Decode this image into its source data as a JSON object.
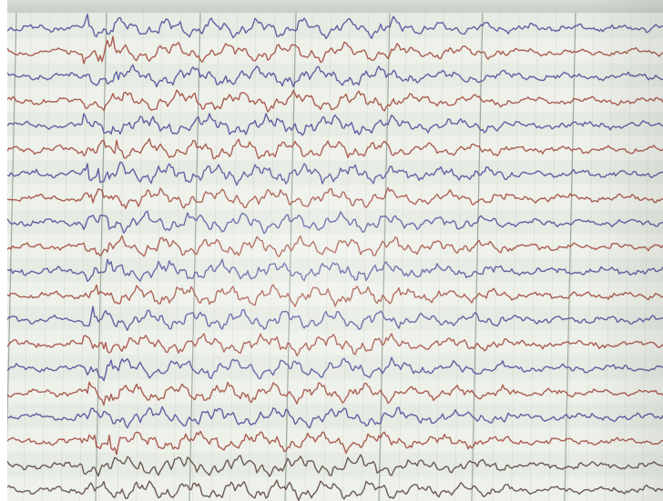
{
  "recording": {
    "channel_count": 20,
    "time_marks": [
      "",
      "",
      "",
      "",
      "",
      "",
      ""
    ],
    "colors": {
      "paper": "#e6ebe3",
      "paper_light": "#f4f6f1",
      "grid": "#8f9a8f",
      "trace_blue": "#4b4f9a",
      "trace_red": "#a2483c",
      "trace_dark": "#5a4440"
    }
  }
}
